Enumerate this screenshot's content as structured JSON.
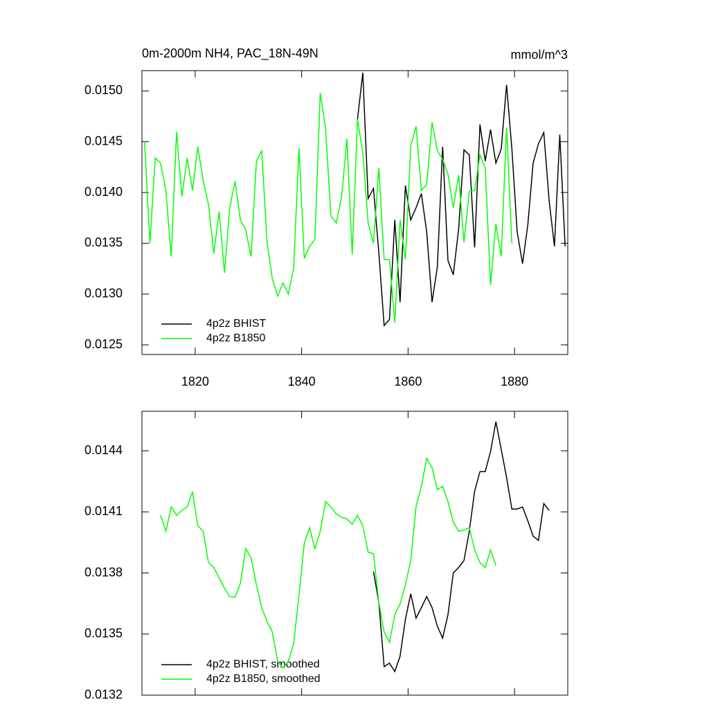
{
  "chart_data": [
    {
      "type": "line",
      "title": "0m-2000m NH4, PAC_18N-49N",
      "units": "mmol/m^3",
      "xlim": [
        1810,
        1890
      ],
      "xticks": [
        1820,
        1840,
        1860,
        1880
      ],
      "ylim": [
        0.012405,
        0.0152
      ],
      "yticks": [
        {
          "value": 0.015,
          "label": "0.0150"
        },
        0.0145,
        {
          "value": 0.014,
          "label": "0.0140"
        },
        0.0135,
        {
          "value": 0.013,
          "label": "0.0130"
        },
        0.0125
      ],
      "series": [
        {
          "name": "4p2z BHIST",
          "color": "#000000",
          "x": [
            1850.5,
            1851.5,
            1852.5,
            1853.5,
            1854.5,
            1855.5,
            1856.5,
            1857.5,
            1858.5,
            1859.5,
            1860.5,
            1861.5,
            1862.5,
            1863.5,
            1864.5,
            1865.5,
            1866.5,
            1867.5,
            1868.5,
            1869.5,
            1870.5,
            1871.5,
            1872.5,
            1873.5,
            1874.5,
            1875.5,
            1876.5,
            1877.5,
            1878.5,
            1879.5,
            1880.5,
            1881.5,
            1882.5,
            1883.5,
            1884.5,
            1885.5,
            1886.5,
            1887.5,
            1888.5,
            1889.5
          ],
          "values": [
            0.01472,
            0.01518,
            0.01394,
            0.01404,
            0.01341,
            0.01269,
            0.01275,
            0.01373,
            0.01292,
            0.01407,
            0.01373,
            0.01385,
            0.01399,
            0.01361,
            0.01292,
            0.01327,
            0.01445,
            0.01333,
            0.01319,
            0.01364,
            0.01442,
            0.01437,
            0.01346,
            0.01467,
            0.01431,
            0.01462,
            0.01429,
            0.01443,
            0.01506,
            0.01443,
            0.01361,
            0.0133,
            0.01368,
            0.01429,
            0.01448,
            0.01459,
            0.01392,
            0.01347,
            0.01457,
            0.01347
          ]
        },
        {
          "name": "4p2z B1850",
          "color": "#00ff00",
          "x": [
            1810.5,
            1811.5,
            1812.5,
            1813.5,
            1814.5,
            1815.5,
            1816.5,
            1817.5,
            1818.5,
            1819.5,
            1820.5,
            1821.5,
            1822.5,
            1823.5,
            1824.5,
            1825.5,
            1826.5,
            1827.5,
            1828.5,
            1829.5,
            1830.5,
            1831.5,
            1832.5,
            1833.5,
            1834.5,
            1835.5,
            1836.5,
            1837.5,
            1838.5,
            1839.5,
            1840.5,
            1841.5,
            1842.5,
            1843.5,
            1844.5,
            1845.5,
            1846.5,
            1847.5,
            1848.5,
            1849.5,
            1850.5,
            1851.5,
            1852.5,
            1853.5,
            1854.5,
            1855.5,
            1856.5,
            1857.5,
            1858.5,
            1859.5,
            1860.5,
            1861.5,
            1862.5,
            1863.5,
            1864.5,
            1865.5,
            1866.5,
            1867.5,
            1868.5,
            1869.5,
            1870.5,
            1871.5,
            1872.5,
            1873.5,
            1874.5,
            1875.5,
            1876.5,
            1877.5,
            1878.5,
            1879.5
          ],
          "values": [
            0.0145,
            0.0135,
            0.01434,
            0.01429,
            0.01402,
            0.01337,
            0.0146,
            0.01396,
            0.01434,
            0.01402,
            0.01445,
            0.01412,
            0.01388,
            0.0134,
            0.01381,
            0.01321,
            0.01385,
            0.01411,
            0.01373,
            0.01363,
            0.01337,
            0.01431,
            0.01441,
            0.01351,
            0.01315,
            0.01298,
            0.01311,
            0.013,
            0.01325,
            0.01444,
            0.01335,
            0.01347,
            0.01354,
            0.01498,
            0.01463,
            0.01377,
            0.0137,
            0.01395,
            0.01453,
            0.01339,
            0.01472,
            0.01439,
            0.0137,
            0.0135,
            0.01424,
            0.01334,
            0.01334,
            0.01272,
            0.01373,
            0.01334,
            0.01446,
            0.01465,
            0.01402,
            0.01408,
            0.01469,
            0.01441,
            0.01433,
            0.01418,
            0.01385,
            0.01417,
            0.01351,
            0.01401,
            0.01402,
            0.01437,
            0.01424,
            0.01309,
            0.01369,
            0.01337,
            0.01464,
            0.0135
          ]
        }
      ]
    },
    {
      "type": "line",
      "xlim": [
        1810,
        1890
      ],
      "xticks": [
        1820,
        1840,
        1860,
        1880
      ],
      "ylim": [
        0.0132,
        0.014594
      ],
      "yticks": [
        0.0144,
        0.0141,
        0.0138,
        0.0135,
        0.0132
      ],
      "series": [
        {
          "name": "4p2z BHIST, smoothed",
          "color": "#000000",
          "x": [
            1853.5,
            1854.5,
            1855.5,
            1856.5,
            1857.5,
            1858.5,
            1859.5,
            1860.5,
            1861.5,
            1862.5,
            1863.5,
            1864.5,
            1865.5,
            1866.5,
            1867.5,
            1868.5,
            1869.5,
            1870.5,
            1871.5,
            1872.5,
            1873.5,
            1874.5,
            1875.5,
            1876.5,
            1877.5,
            1878.5,
            1879.5,
            1880.5,
            1881.5,
            1882.5,
            1883.5,
            1884.5,
            1885.5,
            1886.5
          ],
          "values": [
            0.013807,
            0.013657,
            0.01334,
            0.013357,
            0.013316,
            0.013391,
            0.013572,
            0.013698,
            0.013578,
            0.01363,
            0.013684,
            0.01363,
            0.013538,
            0.01348,
            0.013595,
            0.0138,
            0.013827,
            0.013861,
            0.014005,
            0.014202,
            0.014298,
            0.014298,
            0.014397,
            0.014543,
            0.014407,
            0.01427,
            0.014114,
            0.014114,
            0.014124,
            0.014056,
            0.013981,
            0.01396,
            0.014141,
            0.014107
          ]
        },
        {
          "name": "4p2z B1850, smoothed",
          "color": "#00ff00",
          "x": [
            1813.5,
            1814.5,
            1815.5,
            1816.5,
            1817.5,
            1818.5,
            1819.5,
            1820.5,
            1821.5,
            1822.5,
            1823.5,
            1824.5,
            1825.5,
            1826.5,
            1827.5,
            1828.5,
            1829.5,
            1830.5,
            1831.5,
            1832.5,
            1833.5,
            1834.5,
            1835.5,
            1836.5,
            1837.5,
            1838.5,
            1839.5,
            1840.5,
            1841.5,
            1842.5,
            1843.5,
            1844.5,
            1845.5,
            1846.5,
            1847.5,
            1848.5,
            1849.5,
            1850.5,
            1851.5,
            1852.5,
            1853.5,
            1854.5,
            1855.5,
            1856.5,
            1857.5,
            1858.5,
            1859.5,
            1860.5,
            1861.5,
            1862.5,
            1863.5,
            1864.5,
            1865.5,
            1866.5,
            1867.5,
            1868.5,
            1869.5,
            1870.5,
            1871.5,
            1872.5,
            1873.5,
            1874.5,
            1875.5,
            1876.5
          ],
          "values": [
            0.014083,
            0.014005,
            0.014124,
            0.014083,
            0.014107,
            0.014124,
            0.014199,
            0.014032,
            0.014005,
            0.013851,
            0.013827,
            0.013776,
            0.013725,
            0.013684,
            0.013681,
            0.013749,
            0.013919,
            0.013875,
            0.013742,
            0.01363,
            0.013561,
            0.01351,
            0.013367,
            0.013333,
            0.013367,
            0.013452,
            0.013691,
            0.013947,
            0.014022,
            0.013919,
            0.014005,
            0.014151,
            0.014124,
            0.01409,
            0.014073,
            0.014066,
            0.014039,
            0.014083,
            0.014032,
            0.013902,
            0.013895,
            0.013657,
            0.01351,
            0.013459,
            0.013595,
            0.013647,
            0.013742,
            0.013861,
            0.014127,
            0.014226,
            0.014363,
            0.014318,
            0.014209,
            0.014226,
            0.014151,
            0.014049,
            0.014005,
            0.014011,
            0.014022,
            0.013913,
            0.013851,
            0.013827,
            0.013913,
            0.013838
          ]
        }
      ]
    }
  ]
}
